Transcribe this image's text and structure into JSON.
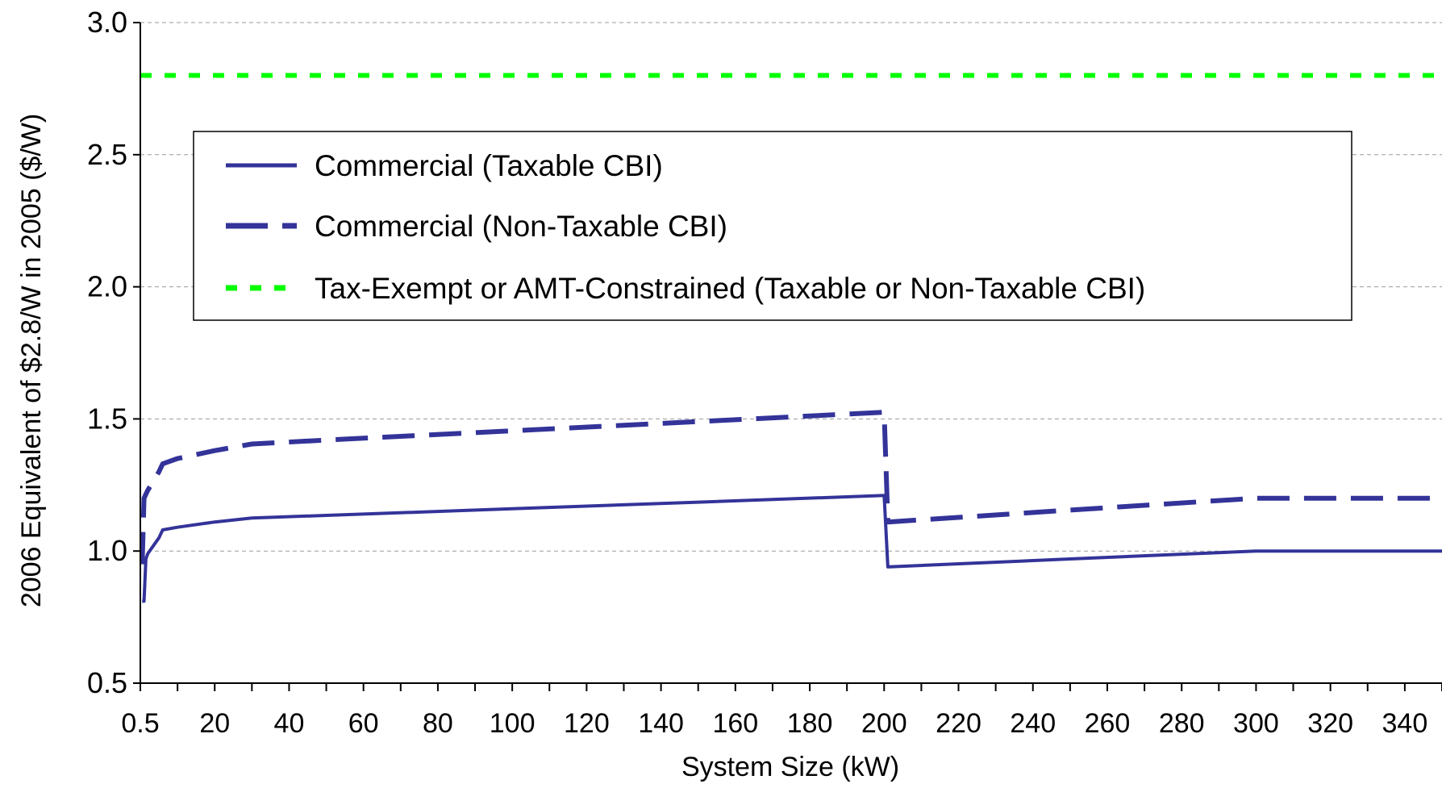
{
  "chart_data": {
    "type": "line",
    "xlabel": "System Size (kW)",
    "ylabel": "2006 Equivalent of $2.8/W in 2005 ($/W)",
    "ylim": [
      0.5,
      3.0
    ],
    "xlim": [
      0,
      350
    ],
    "grid": "horizontal dashed",
    "legend_position": "upper-left inside plot",
    "yticks": [
      "0.5",
      "1.0",
      "1.5",
      "2.0",
      "2.5",
      "3.0"
    ],
    "xticks": [
      "0.5",
      "20",
      "40",
      "60",
      "80",
      "100",
      "120",
      "140",
      "160",
      "180",
      "200",
      "220",
      "240",
      "260",
      "280",
      "300",
      "320",
      "340"
    ],
    "series": [
      {
        "name": "Commercial (Taxable CBI)",
        "color": "#333399",
        "style": "solid",
        "points": [
          [
            0.5,
            0.81
          ],
          [
            1.0,
            0.81
          ],
          [
            1.5,
            0.97
          ],
          [
            2,
            0.99
          ],
          [
            5,
            1.05
          ],
          [
            6,
            1.08
          ],
          [
            10,
            1.09
          ],
          [
            20,
            1.11
          ],
          [
            30,
            1.125
          ],
          [
            50,
            1.135
          ],
          [
            100,
            1.16
          ],
          [
            150,
            1.185
          ],
          [
            199.5,
            1.21
          ],
          [
            200,
            1.21
          ],
          [
            201,
            0.94
          ],
          [
            250,
            0.97
          ],
          [
            300,
            1.0
          ],
          [
            350,
            1.0
          ]
        ]
      },
      {
        "name": "Commercial (Non-Taxable CBI)",
        "color": "#333399",
        "style": "dashed",
        "points": [
          [
            0.5,
            0.95
          ],
          [
            1.0,
            1.2
          ],
          [
            2,
            1.23
          ],
          [
            5,
            1.3
          ],
          [
            6,
            1.33
          ],
          [
            10,
            1.35
          ],
          [
            20,
            1.38
          ],
          [
            30,
            1.405
          ],
          [
            50,
            1.42
          ],
          [
            100,
            1.455
          ],
          [
            150,
            1.49
          ],
          [
            199.5,
            1.525
          ],
          [
            200,
            1.525
          ],
          [
            201,
            1.11
          ],
          [
            250,
            1.155
          ],
          [
            300,
            1.2
          ],
          [
            350,
            1.2
          ]
        ]
      },
      {
        "name": "Tax-Exempt or AMT-Constrained (Taxable or Non-Taxable CBI)",
        "color": "#00ff00",
        "style": "dotted",
        "points": [
          [
            0,
            2.8
          ],
          [
            350,
            2.8
          ]
        ]
      }
    ]
  }
}
